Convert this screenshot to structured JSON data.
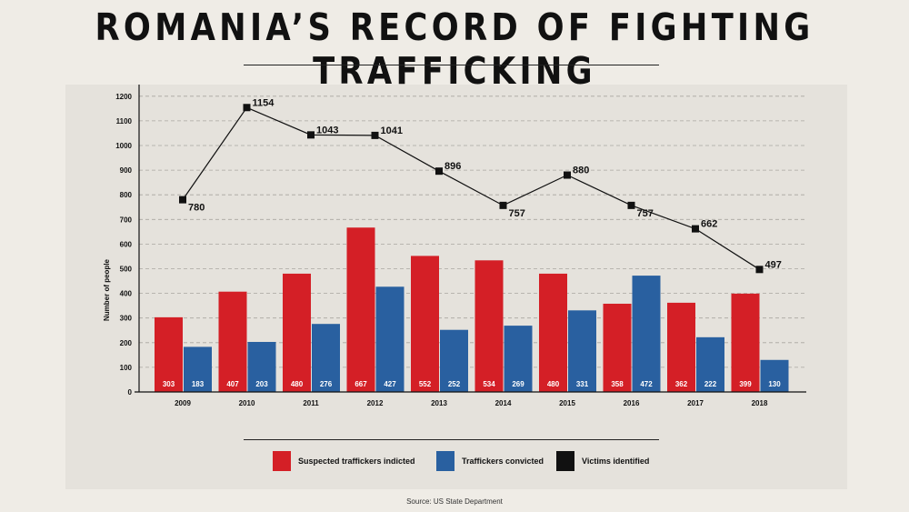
{
  "title": "ROMANIA’S RECORD OF FIGHTING TRAFFICKING",
  "source": "Source: US State Department",
  "colors": {
    "indicted": "#d41f26",
    "convicted": "#2960a0",
    "victims": "#111111"
  },
  "chart_data": {
    "type": "bar",
    "title": "ROMANIA’S RECORD OF FIGHTING TRAFFICKING",
    "xlabel": "",
    "ylabel": "Number of people",
    "ylim": [
      0,
      1200
    ],
    "yticks": [
      0,
      100,
      200,
      300,
      400,
      500,
      600,
      700,
      800,
      900,
      1000,
      1100,
      1200
    ],
    "grid": true,
    "legend_position": "bottom",
    "categories": [
      "2009",
      "2010",
      "2011",
      "2012",
      "2013",
      "2014",
      "2015",
      "2016",
      "2017",
      "2018"
    ],
    "series": [
      {
        "name": "Suspected traffickers indicted",
        "type": "bar",
        "values": [
          303,
          407,
          480,
          667,
          552,
          534,
          480,
          358,
          362,
          399
        ]
      },
      {
        "name": "Traffickers convicted",
        "type": "bar",
        "values": [
          183,
          203,
          276,
          427,
          252,
          269,
          331,
          472,
          222,
          130
        ]
      },
      {
        "name": "Victims identified",
        "type": "line",
        "values": [
          780,
          1154,
          1043,
          1041,
          896,
          757,
          880,
          757,
          662,
          497
        ]
      }
    ]
  }
}
